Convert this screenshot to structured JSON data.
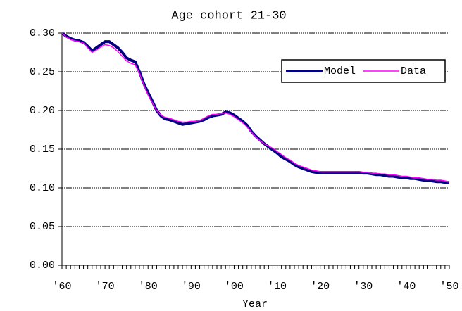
{
  "chart_data": {
    "type": "line",
    "title": "Age cohort 21-30",
    "x_label": "Year",
    "categories": [
      "'60",
      null,
      null,
      null,
      null,
      null,
      null,
      null,
      null,
      null,
      "'70",
      null,
      null,
      null,
      null,
      null,
      null,
      null,
      null,
      null,
      "'80",
      null,
      null,
      null,
      null,
      null,
      null,
      null,
      null,
      null,
      "'90",
      null,
      null,
      null,
      null,
      null,
      null,
      null,
      null,
      null,
      "'00",
      null,
      null,
      null,
      null,
      null,
      null,
      null,
      null,
      null,
      "'10",
      null,
      null,
      null,
      null,
      null,
      null,
      null,
      null,
      null,
      "'20",
      null,
      null,
      null,
      null,
      null,
      null,
      null,
      null,
      null,
      "'30",
      null,
      null,
      null,
      null,
      null,
      null,
      null,
      null,
      null,
      "'40",
      null,
      null,
      null,
      null,
      null,
      null,
      null,
      null,
      null,
      "'50"
    ],
    "series": [
      {
        "name": "Model",
        "color": "#000080",
        "values": [
          0.3,
          0.296,
          0.293,
          0.291,
          0.29,
          0.288,
          0.283,
          0.277,
          0.281,
          0.285,
          0.289,
          0.289,
          0.285,
          0.281,
          0.275,
          0.268,
          0.265,
          0.263,
          0.25,
          0.235,
          0.223,
          0.212,
          0.2,
          0.193,
          0.189,
          0.188,
          0.186,
          0.184,
          0.182,
          0.183,
          0.184,
          0.185,
          0.186,
          0.188,
          0.191,
          0.193,
          0.194,
          0.195,
          0.198,
          0.197,
          0.194,
          0.19,
          0.186,
          0.181,
          0.173,
          0.167,
          0.162,
          0.157,
          0.153,
          0.149,
          0.145,
          0.14,
          0.137,
          0.134,
          0.13,
          0.127,
          0.125,
          0.123,
          0.121,
          0.12,
          0.12,
          0.12,
          0.12,
          0.12,
          0.12,
          0.12,
          0.12,
          0.12,
          0.12,
          0.12,
          0.119,
          0.119,
          0.118,
          0.117,
          0.117,
          0.116,
          0.115,
          0.115,
          0.114,
          0.113,
          0.113,
          0.112,
          0.112,
          0.111,
          0.11,
          0.11,
          0.109,
          0.108,
          0.108,
          0.107,
          0.107
        ]
      },
      {
        "name": "Data",
        "color": "#ff00ff",
        "values": [
          0.3,
          0.295,
          0.292,
          0.29,
          0.289,
          0.287,
          0.281,
          0.275,
          0.278,
          0.282,
          0.285,
          0.284,
          0.281,
          0.276,
          0.27,
          0.264,
          0.261,
          0.259,
          0.248,
          0.233,
          0.22,
          0.21,
          0.2,
          0.194,
          0.191,
          0.19,
          0.188,
          0.186,
          0.185,
          0.185,
          0.186,
          0.186,
          0.187,
          0.19,
          0.193,
          0.195,
          0.195,
          0.196,
          0.197,
          0.195,
          0.192,
          0.188,
          0.184,
          0.179,
          0.172,
          0.166,
          0.161,
          0.157,
          0.154,
          0.151,
          0.147,
          0.143,
          0.139,
          0.136,
          0.132,
          0.129,
          0.127,
          0.125,
          0.123,
          0.122,
          0.121,
          0.121,
          0.121,
          0.121,
          0.121,
          0.121,
          0.121,
          0.121,
          0.121,
          0.121,
          0.12,
          0.12,
          0.119,
          0.119,
          0.118,
          0.118,
          0.117,
          0.117,
          0.116,
          0.115,
          0.115,
          0.114,
          0.113,
          0.113,
          0.112,
          0.111,
          0.111,
          0.11,
          0.11,
          0.109,
          0.108
        ]
      }
    ],
    "ylim": [
      0,
      0.3
    ],
    "yticks": [
      {
        "value": 0,
        "label": "0.00"
      },
      {
        "value": 0.05,
        "label": "0.05"
      },
      {
        "value": 0.1,
        "label": "0.10"
      },
      {
        "value": 0.15,
        "label": "0.15"
      },
      {
        "value": 0.2,
        "label": "0.20"
      },
      {
        "value": 0.25,
        "label": "0.25"
      },
      {
        "value": 0.3,
        "label": "0.30"
      }
    ],
    "grid": true,
    "legend": "upper-right"
  }
}
